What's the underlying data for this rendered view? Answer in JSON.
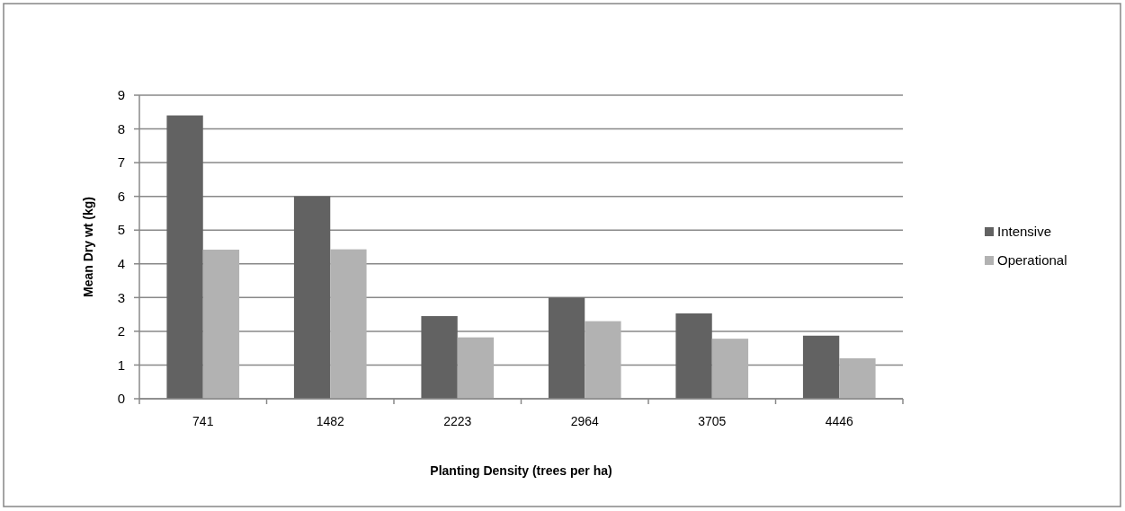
{
  "chart_data": {
    "type": "bar",
    "xlabel": "Planting Density (trees per ha)",
    "ylabel": "Mean Dry wt (kg)",
    "categories": [
      "741",
      "1482",
      "2223",
      "2964",
      "3705",
      "4446"
    ],
    "series": [
      {
        "name": "Intensive",
        "color": "#626262",
        "values": [
          8.4,
          6.0,
          2.45,
          3.0,
          2.53,
          1.87
        ]
      },
      {
        "name": "Operational",
        "color": "#b2b2b2",
        "values": [
          4.42,
          4.43,
          1.82,
          2.3,
          1.78,
          1.2
        ]
      }
    ],
    "ylim": [
      0,
      9
    ],
    "yticks": [
      0,
      1,
      2,
      3,
      4,
      5,
      6,
      7,
      8,
      9
    ],
    "grid": "y",
    "legend": "right"
  }
}
